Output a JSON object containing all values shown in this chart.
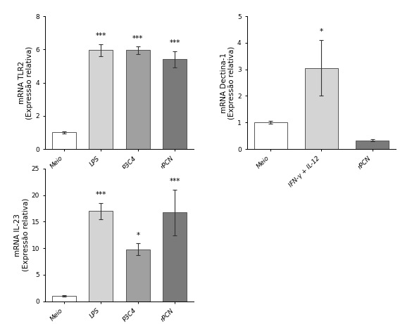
{
  "plot1": {
    "categories": [
      "Meio",
      "LPS",
      "P3C4",
      "rPCN"
    ],
    "values": [
      1.0,
      5.95,
      5.95,
      5.4
    ],
    "errors": [
      0.08,
      0.38,
      0.22,
      0.5
    ],
    "colors": [
      "#ffffff",
      "#d4d4d4",
      "#a0a0a0",
      "#7a7a7a"
    ],
    "ylabel": "mRNA TLR2\n(Expressão relativa)",
    "ylim": [
      0,
      8
    ],
    "yticks": [
      0,
      2,
      4,
      6,
      8
    ],
    "significance": [
      "",
      "***",
      "***",
      "***"
    ]
  },
  "plot2": {
    "categories": [
      "Meio",
      "IFN-γ + IL-12",
      "rPCN"
    ],
    "values": [
      1.0,
      3.05,
      0.32
    ],
    "errors": [
      0.05,
      1.05,
      0.04
    ],
    "colors": [
      "#ffffff",
      "#d4d4d4",
      "#7a7a7a"
    ],
    "ylabel": "mRNA Dectina-1\n(Expressão relativa)",
    "ylim": [
      0,
      5
    ],
    "yticks": [
      0,
      1,
      2,
      3,
      4,
      5
    ],
    "significance": [
      "",
      "*",
      ""
    ]
  },
  "plot3": {
    "categories": [
      "Meio",
      "LPS",
      "P3C4",
      "rPCN"
    ],
    "values": [
      1.0,
      17.0,
      9.8,
      16.7
    ],
    "errors": [
      0.1,
      1.5,
      1.1,
      4.3
    ],
    "colors": [
      "#ffffff",
      "#d4d4d4",
      "#a0a0a0",
      "#7a7a7a"
    ],
    "ylabel": "mRNA IL-23\n(Expressão relativa)",
    "ylim": [
      0,
      25
    ],
    "yticks": [
      0,
      5,
      10,
      15,
      20,
      25
    ],
    "significance": [
      "",
      "***",
      "*",
      "***"
    ]
  },
  "bar_width": 0.65,
  "edge_color": "#555555",
  "error_color": "#333333",
  "sig_fontsize": 7.5,
  "tick_fontsize": 6.5,
  "label_fontsize": 7.5
}
